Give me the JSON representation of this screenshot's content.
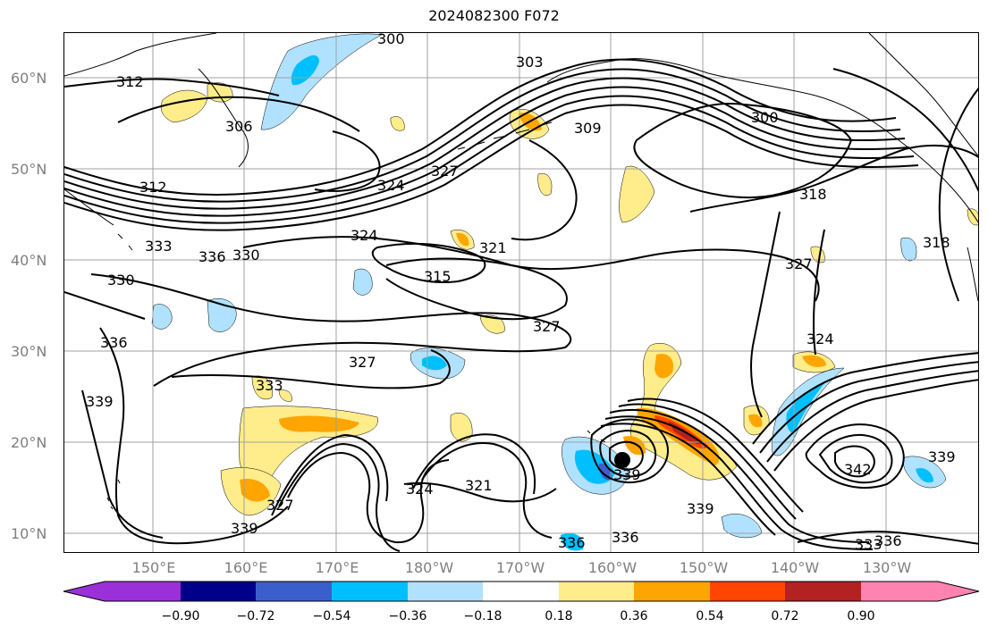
{
  "title": "2024082300 F072",
  "lat_labels": [
    "60°N",
    "50°N",
    "40°N",
    "30°N",
    "20°N",
    "10°N"
  ],
  "lon_labels": [
    "150°E",
    "160°E",
    "170°E",
    "180°W",
    "170°W",
    "160°W",
    "150°W",
    "140°W",
    "130°W"
  ],
  "colorbar": {
    "tick_labels": [
      "−0.90",
      "−0.72",
      "−0.54",
      "−0.36",
      "−0.18",
      "0.18",
      "0.36",
      "0.54",
      "0.72",
      "0.90"
    ],
    "colors": [
      "#9b30d9",
      "#00008b",
      "#3a5fcd",
      "#00bfff",
      "#b0e2ff",
      "#ffffff",
      "#ffec8b",
      "#ffa500",
      "#ff4500",
      "#b22222",
      "#ff83b0"
    ]
  },
  "contour_labels": [
    "300",
    "303",
    "306",
    "309",
    "312",
    "315",
    "318",
    "321",
    "324",
    "327",
    "330",
    "333",
    "336",
    "339",
    "342"
  ],
  "colors": {
    "contour": "#000000",
    "grid": "#a0a0a0",
    "coast": "#000000",
    "axis_text": "#7f7f7f"
  }
}
